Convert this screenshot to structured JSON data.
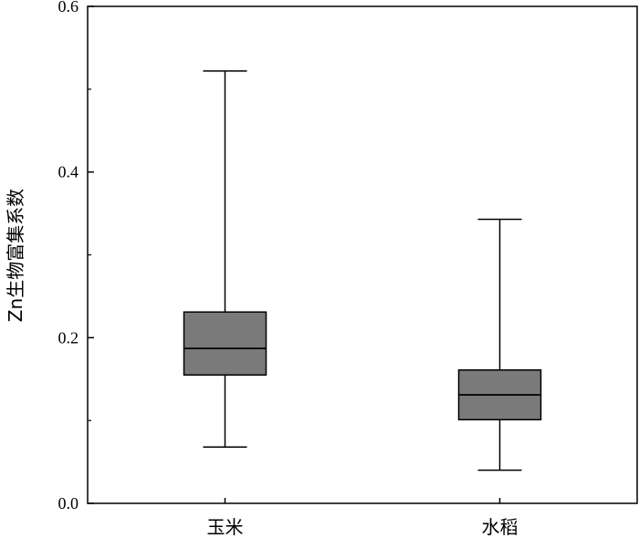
{
  "chart_data": {
    "type": "box",
    "ylabel": "Zn生物富集系数",
    "ylim": [
      0.0,
      0.6
    ],
    "yticks": [
      {
        "value": 0.0,
        "label": "0.0"
      },
      {
        "value": 0.2,
        "label": "0.2"
      },
      {
        "value": 0.4,
        "label": "0.4"
      },
      {
        "value": 0.6,
        "label": "0.6"
      }
    ],
    "yminor_ticks": [
      0.1,
      0.3,
      0.5
    ],
    "categories": [
      "玉米",
      "水稻"
    ],
    "boxes": [
      {
        "category": "玉米",
        "min": 0.068,
        "q1": 0.155,
        "median": 0.187,
        "q3": 0.231,
        "max": 0.522
      },
      {
        "category": "水稻",
        "min": 0.04,
        "q1": 0.101,
        "median": 0.131,
        "q3": 0.161,
        "max": 0.343
      }
    ],
    "box_color": "#7a7a7a",
    "grid": false,
    "legend": "none"
  }
}
